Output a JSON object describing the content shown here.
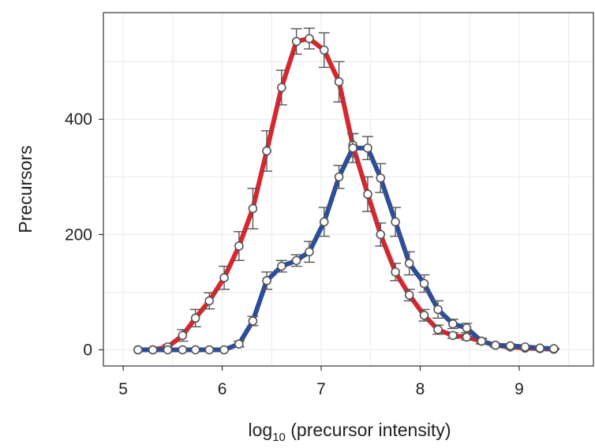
{
  "chart_data": {
    "type": "line",
    "title": "",
    "xlabel": "log",
    "xlabel_sub": "10",
    "xlabel_rest": " (precursor intensity)",
    "ylabel": "Precursors",
    "xlim": [
      4.8,
      9.75
    ],
    "ylim": [
      -28,
      585
    ],
    "xticks": [
      5,
      6,
      7,
      8,
      9
    ],
    "xtick_labels": [
      "5",
      "6",
      "7",
      "8",
      "9"
    ],
    "yticks": [
      0,
      200,
      400
    ],
    "ytick_labels": [
      "0",
      "200",
      "400"
    ],
    "grid": true,
    "series": [
      {
        "color": "#d7262d",
        "x": [
          5.15,
          5.3,
          5.45,
          5.6,
          5.73,
          5.87,
          6.02,
          6.17,
          6.31,
          6.45,
          6.6,
          6.75,
          6.88,
          7.03,
          7.18,
          7.32,
          7.47,
          7.6,
          7.75,
          7.89,
          8.04,
          8.18,
          8.33,
          8.47,
          8.62,
          8.76,
          8.91,
          9.06,
          9.21,
          9.35
        ],
        "y": [
          0,
          0,
          5,
          25,
          55,
          85,
          125,
          180,
          245,
          345,
          455,
          535,
          540,
          520,
          465,
          355,
          270,
          200,
          135,
          95,
          60,
          35,
          25,
          22,
          15,
          8,
          5,
          3,
          2,
          1
        ],
        "err": [
          0,
          0,
          4,
          10,
          15,
          14,
          20,
          25,
          35,
          35,
          30,
          22,
          18,
          30,
          35,
          20,
          30,
          20,
          15,
          10,
          10,
          8,
          5,
          5,
          4,
          3,
          3,
          2,
          1,
          1
        ]
      },
      {
        "color": "#2d4d9a",
        "x": [
          5.15,
          5.3,
          5.45,
          5.6,
          5.73,
          5.87,
          6.02,
          6.17,
          6.31,
          6.45,
          6.6,
          6.75,
          6.88,
          7.03,
          7.18,
          7.32,
          7.47,
          7.6,
          7.75,
          7.89,
          8.04,
          8.18,
          8.33,
          8.47,
          8.62,
          8.76,
          8.91,
          9.06,
          9.21,
          9.35
        ],
        "y": [
          0,
          0,
          0,
          0,
          0,
          0,
          0,
          10,
          50,
          120,
          145,
          155,
          170,
          222,
          300,
          350,
          350,
          298,
          222,
          150,
          115,
          70,
          45,
          38,
          15,
          8,
          7,
          5,
          3,
          2
        ],
        "err": [
          0,
          0,
          0,
          0,
          0,
          0,
          0,
          5,
          8,
          15,
          10,
          10,
          18,
          25,
          20,
          25,
          20,
          25,
          25,
          20,
          15,
          15,
          8,
          8,
          5,
          3,
          3,
          2,
          1,
          1
        ]
      }
    ]
  }
}
